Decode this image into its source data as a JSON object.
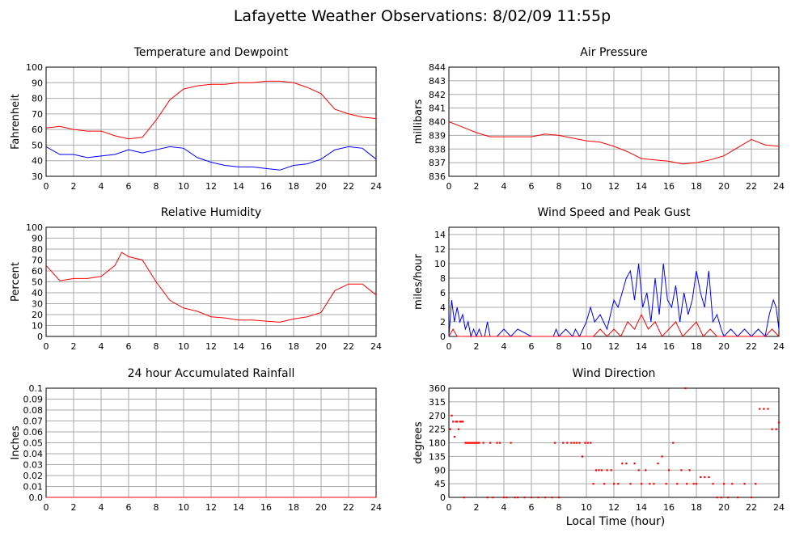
{
  "page": {
    "title": "Lafayette Weather Observations: 8/02/09 11:55p",
    "xlabel_global": "Local Time (hour)"
  },
  "colors": {
    "red": "#ff0000",
    "blue": "#0000ff",
    "grid": "#aaaaaa",
    "frame": "#000000"
  },
  "chart_data": [
    {
      "type": "line",
      "title": "Temperature and Dewpoint",
      "ylabel": "Fahrenheit",
      "xlim": [
        0,
        24
      ],
      "ylim": [
        30,
        100
      ],
      "x_ticks": [
        0,
        2,
        4,
        6,
        8,
        10,
        12,
        14,
        16,
        18,
        20,
        22,
        24
      ],
      "y_ticks": [
        30,
        40,
        50,
        60,
        70,
        80,
        90,
        100
      ],
      "grid": true,
      "series": [
        {
          "color": "#ff0000",
          "x": [
            0,
            1,
            2,
            3,
            4,
            5,
            6,
            7,
            8,
            9,
            10,
            11,
            12,
            13,
            14,
            15,
            16,
            17,
            18,
            19,
            20,
            21,
            22,
            23,
            24
          ],
          "values": [
            61,
            62,
            60,
            59,
            59,
            56,
            54,
            55,
            66,
            79,
            86,
            88,
            89,
            89,
            90,
            90,
            91,
            91,
            90,
            87,
            83,
            73,
            70,
            68,
            67
          ]
        },
        {
          "color": "#0000ff",
          "x": [
            0,
            1,
            2,
            3,
            4,
            5,
            6,
            7,
            8,
            9,
            10,
            11,
            12,
            13,
            14,
            15,
            16,
            17,
            18,
            19,
            20,
            21,
            22,
            23,
            24
          ],
          "values": [
            49,
            44,
            44,
            42,
            43,
            44,
            47,
            45,
            47,
            49,
            48,
            42,
            39,
            37,
            36,
            36,
            35,
            34,
            37,
            38,
            41,
            47,
            49,
            48,
            41
          ]
        }
      ]
    },
    {
      "type": "line",
      "title": "Air Pressure",
      "ylabel": "millibars",
      "xlim": [
        0,
        24
      ],
      "ylim": [
        836,
        844
      ],
      "x_ticks": [
        0,
        2,
        4,
        6,
        8,
        10,
        12,
        14,
        16,
        18,
        20,
        22,
        24
      ],
      "y_ticks": [
        836,
        837,
        838,
        839,
        840,
        841,
        842,
        843,
        844
      ],
      "grid": true,
      "series": [
        {
          "color": "#ff0000",
          "x": [
            0,
            1,
            2,
            3,
            4,
            5,
            6,
            7,
            8,
            9,
            10,
            11,
            12,
            13,
            14,
            15,
            16,
            17,
            18,
            19,
            20,
            21,
            22,
            23,
            24
          ],
          "values": [
            840.0,
            839.6,
            839.2,
            838.9,
            838.9,
            838.9,
            838.9,
            839.1,
            839.0,
            838.8,
            838.6,
            838.5,
            838.2,
            837.8,
            837.3,
            837.2,
            837.1,
            836.9,
            837.0,
            837.2,
            837.5,
            838.1,
            838.7,
            838.3,
            838.2
          ]
        }
      ]
    },
    {
      "type": "line",
      "title": "Relative Humidity",
      "ylabel": "Percent",
      "xlim": [
        0,
        24
      ],
      "ylim": [
        0,
        100
      ],
      "x_ticks": [
        0,
        2,
        4,
        6,
        8,
        10,
        12,
        14,
        16,
        18,
        20,
        22,
        24
      ],
      "y_ticks": [
        0,
        10,
        20,
        30,
        40,
        50,
        60,
        70,
        80,
        90,
        100
      ],
      "grid": true,
      "series": [
        {
          "color": "#ff0000",
          "x": [
            0,
            1,
            2,
            3,
            4,
            5,
            5.5,
            6,
            7,
            8,
            9,
            10,
            11,
            12,
            13,
            14,
            15,
            16,
            17,
            18,
            19,
            20,
            21,
            22,
            23,
            24
          ],
          "values": [
            65,
            51,
            53,
            53,
            55,
            65,
            77,
            73,
            70,
            50,
            33,
            26,
            23,
            18,
            17,
            15,
            15,
            14,
            13,
            16,
            18,
            22,
            42,
            48,
            48,
            38
          ]
        }
      ]
    },
    {
      "type": "line",
      "title": "Wind Speed and Peak Gust",
      "ylabel": "miles/hour",
      "xlim": [
        0,
        24
      ],
      "ylim": [
        0,
        15
      ],
      "x_ticks": [
        0,
        2,
        4,
        6,
        8,
        10,
        12,
        14,
        16,
        18,
        20,
        22,
        24
      ],
      "y_ticks": [
        0,
        2,
        4,
        6,
        8,
        10,
        12,
        14
      ],
      "grid": true,
      "series": [
        {
          "color": "#0000ff",
          "x": [
            0,
            0.2,
            0.4,
            0.6,
            0.8,
            1,
            1.2,
            1.4,
            1.6,
            1.8,
            2,
            2.2,
            2.4,
            2.6,
            2.8,
            3,
            3.5,
            4,
            4.5,
            5,
            6,
            7,
            7.6,
            7.8,
            8,
            8.5,
            9,
            9.2,
            9.5,
            10,
            10.3,
            10.6,
            11,
            11.5,
            12,
            12.3,
            12.6,
            12.9,
            13.2,
            13.5,
            13.8,
            14.1,
            14.4,
            14.7,
            15,
            15.3,
            15.6,
            15.9,
            16.2,
            16.5,
            16.8,
            17.1,
            17.4,
            17.7,
            18,
            18.3,
            18.6,
            18.9,
            19.2,
            19.5,
            19.8,
            20,
            20.5,
            21,
            21.5,
            22,
            22.5,
            23,
            23.3,
            23.6,
            23.8,
            24
          ],
          "values": [
            0,
            5,
            2,
            4,
            2,
            3,
            1,
            2,
            0,
            1,
            0,
            1,
            0,
            0,
            2,
            0,
            0,
            1,
            0,
            1,
            0,
            0,
            0,
            1,
            0,
            1,
            0,
            1,
            0,
            2,
            4,
            2,
            3,
            1,
            5,
            4,
            6,
            8,
            9,
            5,
            10,
            4,
            6,
            2,
            8,
            3,
            10,
            5,
            4,
            7,
            2,
            6,
            3,
            5,
            9,
            6,
            4,
            9,
            2,
            3,
            1,
            0,
            1,
            0,
            1,
            0,
            1,
            0,
            3,
            5,
            4,
            1
          ]
        },
        {
          "color": "#ff0000",
          "x": [
            0,
            0.3,
            0.6,
            1,
            1.5,
            2,
            3,
            4,
            5,
            6,
            7,
            8,
            9,
            10,
            10.5,
            11,
            11.5,
            12,
            12.5,
            13,
            13.5,
            14,
            14.5,
            15,
            15.5,
            16,
            16.5,
            17,
            17.5,
            18,
            18.5,
            19,
            19.5,
            20,
            21,
            22,
            23,
            23.5,
            24
          ],
          "values": [
            0,
            1,
            0,
            0,
            0,
            0,
            0,
            0,
            0,
            0,
            0,
            0,
            0,
            0,
            0,
            1,
            0,
            1,
            0,
            2,
            1,
            3,
            1,
            2,
            0,
            1,
            2,
            0,
            1,
            2,
            0,
            1,
            0,
            0,
            0,
            0,
            0,
            1,
            0
          ]
        }
      ]
    },
    {
      "type": "line",
      "title": "24 hour Accumulated Rainfall",
      "ylabel": "Inches",
      "xlim": [
        0,
        24
      ],
      "ylim": [
        0,
        0.1
      ],
      "x_ticks": [
        0,
        2,
        4,
        6,
        8,
        10,
        12,
        14,
        16,
        18,
        20,
        22,
        24
      ],
      "y_ticks": [
        0.0,
        0.01,
        0.02,
        0.03,
        0.04,
        0.05,
        0.06,
        0.07,
        0.08,
        0.09,
        0.1
      ],
      "y_tick_labels": [
        "0.0",
        "0.01",
        "0.02",
        "0.03",
        "0.04",
        "0.05",
        "0.06",
        "0.07",
        "0.08",
        "0.09",
        "0.1"
      ],
      "grid": true,
      "series": [
        {
          "color": "#ff0000",
          "x": [
            0,
            24
          ],
          "values": [
            0,
            0
          ]
        }
      ]
    },
    {
      "type": "scatter",
      "title": "Wind Direction",
      "ylabel": "degrees",
      "xlabel": "Local Time (hour)",
      "xlim": [
        0,
        24
      ],
      "ylim": [
        0,
        360
      ],
      "x_ticks": [
        0,
        2,
        4,
        6,
        8,
        10,
        12,
        14,
        16,
        18,
        20,
        22,
        24
      ],
      "y_ticks": [
        0,
        45,
        90,
        135,
        180,
        225,
        270,
        315,
        360
      ],
      "grid": true,
      "series": [
        {
          "color": "#ff0000",
          "x": [
            0.1,
            0.2,
            0.3,
            0.4,
            0.5,
            0.6,
            0.7,
            0.8,
            0.9,
            1.0,
            1.1,
            1.2,
            1.3,
            1.4,
            1.5,
            1.6,
            1.7,
            1.8,
            1.9,
            2.0,
            2.1,
            2.2,
            2.5,
            2.8,
            3.0,
            3.2,
            3.5,
            3.7,
            4.0,
            4.2,
            4.5,
            4.8,
            5.0,
            5.5,
            6.0,
            6.5,
            7.0,
            7.5,
            7.7,
            8.0,
            8.3,
            8.6,
            8.9,
            9.1,
            9.3,
            9.5,
            9.7,
            9.9,
            10.1,
            10.3,
            10.5,
            10.7,
            10.9,
            11.1,
            11.3,
            11.5,
            11.8,
            12.0,
            12.3,
            12.6,
            12.9,
            13.2,
            13.5,
            13.8,
            14.0,
            14.3,
            14.6,
            14.9,
            15.2,
            15.5,
            15.8,
            16.0,
            16.3,
            16.6,
            16.9,
            17.2,
            17.3,
            17.5,
            17.8,
            18.0,
            18.3,
            18.6,
            18.9,
            19.2,
            19.5,
            19.8,
            20.0,
            20.3,
            20.6,
            21.0,
            21.5,
            22.0,
            22.3,
            22.6,
            22.9,
            23.2,
            23.5,
            23.8,
            24.0
          ],
          "values": [
            225,
            270,
            250,
            200,
            250,
            250,
            225,
            250,
            250,
            250,
            0,
            180,
            180,
            180,
            180,
            180,
            180,
            180,
            180,
            180,
            180,
            180,
            180,
            0,
            180,
            0,
            180,
            180,
            0,
            0,
            180,
            0,
            0,
            0,
            0,
            0,
            0,
            0,
            180,
            0,
            180,
            180,
            180,
            180,
            180,
            180,
            135,
            180,
            180,
            180,
            45,
            90,
            90,
            90,
            45,
            90,
            90,
            45,
            45,
            112,
            112,
            45,
            112,
            90,
            45,
            90,
            45,
            45,
            112,
            135,
            45,
            90,
            180,
            45,
            90,
            360,
            45,
            90,
            45,
            45,
            67,
            67,
            67,
            45,
            0,
            0,
            45,
            0,
            45,
            0,
            45,
            0,
            45,
            292,
            292,
            292,
            225,
            225,
            247
          ]
        }
      ]
    }
  ]
}
